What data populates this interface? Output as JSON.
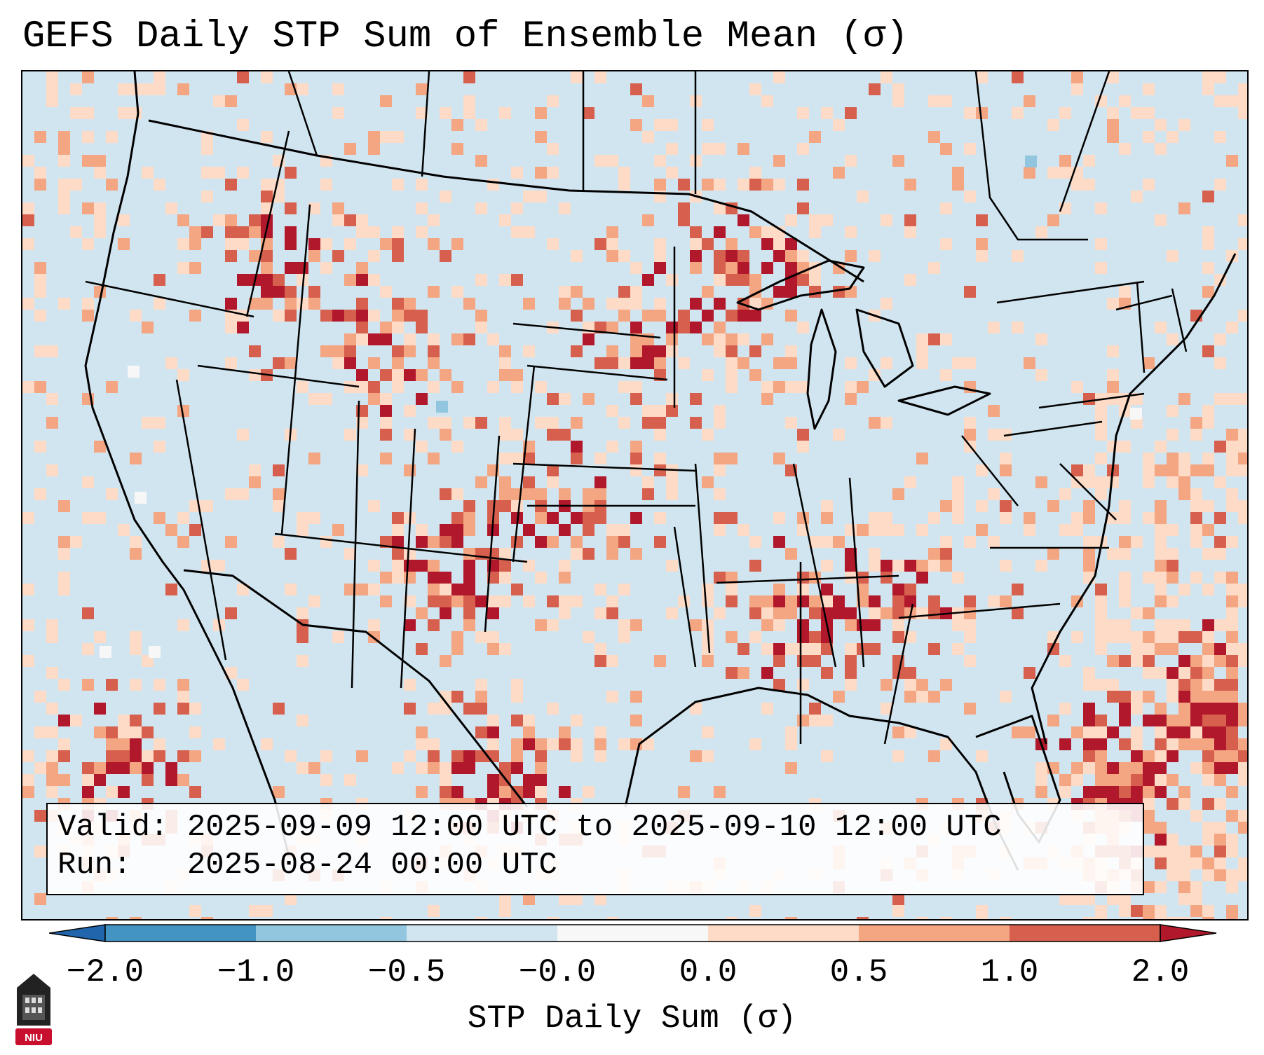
{
  "title": "GEFS Daily STP Sum of Ensemble Mean (σ)",
  "valid_label": "Valid:",
  "valid_value": "2025-09-09 12:00 UTC to 2025-09-10 12:00 UTC",
  "run_label": "Run:",
  "run_value": "2025-08-24 00:00 UTC",
  "colorbar": {
    "label": "STP Daily Sum (σ)",
    "ticks": [
      "−2.0",
      "−1.0",
      "−0.5",
      "−0.0",
      "0.0",
      "0.5",
      "1.0",
      "2.0"
    ],
    "colors": [
      "#2166ac",
      "#4393c3",
      "#92c5de",
      "#d1e5f0",
      "#f7f7f7",
      "#fddbc7",
      "#f4a582",
      "#d6604d",
      "#b2182b"
    ]
  },
  "logo": {
    "text": "NIU"
  },
  "map_colors": {
    "ocean": "#d1e5f0",
    "land": "#d1e5f0",
    "borders": "#000000"
  }
}
